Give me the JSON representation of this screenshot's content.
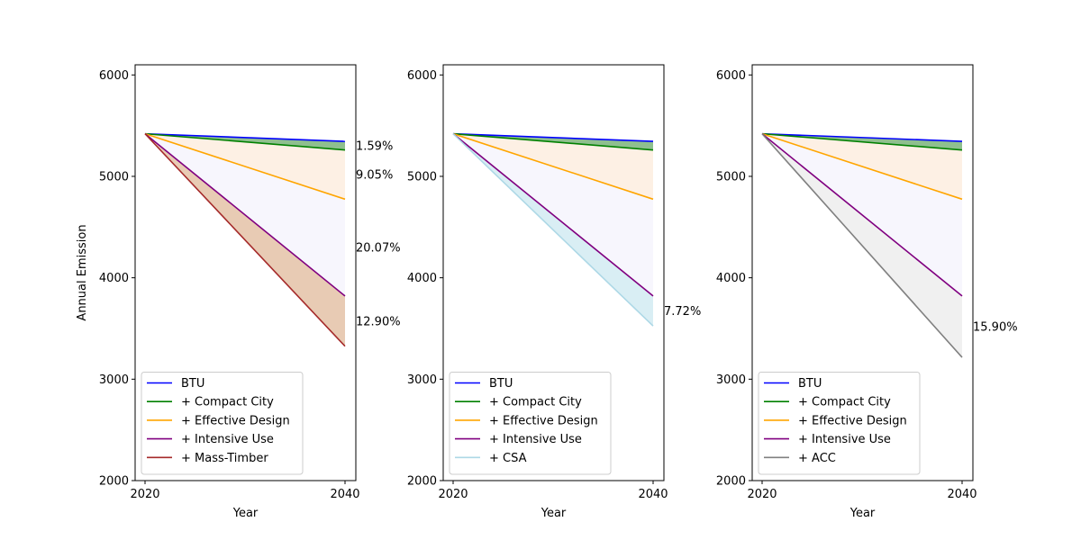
{
  "figure": {
    "shared_ylabel": "Annual Emission"
  },
  "chart_data": [
    {
      "type": "line",
      "xlabel": "Year",
      "ylabel": "Annual Emission",
      "x": [
        2020,
        2040
      ],
      "xticks": [
        "2020",
        "2040"
      ],
      "yticks": [
        "2000",
        "3000",
        "4000",
        "5000",
        "6000"
      ],
      "ylim": [
        2000,
        6100
      ],
      "series": [
        {
          "name": "BTU",
          "values": [
            5420,
            5345
          ],
          "color": "#0000ff"
        },
        {
          "name": "+ Compact City",
          "values": [
            5420,
            5260
          ],
          "color": "#008000"
        },
        {
          "name": "+ Effective Design",
          "values": [
            5420,
            4775
          ],
          "color": "#ffa500"
        },
        {
          "name": "+ Intensive Use",
          "values": [
            5420,
            3820
          ],
          "color": "#800080"
        },
        {
          "name": "+ Mass-Timber",
          "values": [
            5420,
            3325
          ],
          "color": "#a52a2a"
        }
      ],
      "bands": [
        {
          "upper": "BTU",
          "lower": "+ Compact City",
          "fill": "#8fbf8f",
          "label": "1.59%"
        },
        {
          "upper": "+ Compact City",
          "lower": "+ Effective Design",
          "fill": "#fdf0e4",
          "label": "9.05%"
        },
        {
          "upper": "+ Effective Design",
          "lower": "+ Intensive Use",
          "fill": "#f7f6fd",
          "label": "20.07%"
        },
        {
          "upper": "+ Intensive Use",
          "lower": "+ Mass-Timber",
          "fill": "#e8cbb4",
          "label": "12.90%"
        }
      ],
      "grid": false,
      "legend": "lower-left"
    },
    {
      "type": "line",
      "xlabel": "Year",
      "x": [
        2020,
        2040
      ],
      "xticks": [
        "2020",
        "2040"
      ],
      "yticks": [
        "2000",
        "3000",
        "4000",
        "5000",
        "6000"
      ],
      "ylim": [
        2000,
        6100
      ],
      "series": [
        {
          "name": "BTU",
          "values": [
            5420,
            5345
          ],
          "color": "#0000ff"
        },
        {
          "name": "+ Compact City",
          "values": [
            5420,
            5260
          ],
          "color": "#008000"
        },
        {
          "name": "+ Effective Design",
          "values": [
            5420,
            4775
          ],
          "color": "#ffa500"
        },
        {
          "name": "+ Intensive Use",
          "values": [
            5420,
            3820
          ],
          "color": "#800080"
        },
        {
          "name": "+ CSA",
          "values": [
            5420,
            3525
          ],
          "color": "#add8e6"
        }
      ],
      "bands": [
        {
          "upper": "BTU",
          "lower": "+ Compact City",
          "fill": "#8fbf8f",
          "label": ""
        },
        {
          "upper": "+ Compact City",
          "lower": "+ Effective Design",
          "fill": "#fdf0e4",
          "label": ""
        },
        {
          "upper": "+ Effective Design",
          "lower": "+ Intensive Use",
          "fill": "#f7f6fd",
          "label": ""
        },
        {
          "upper": "+ Intensive Use",
          "lower": "+ CSA",
          "fill": "#d9eef4",
          "label": "7.72%"
        }
      ],
      "grid": false,
      "legend": "lower-left"
    },
    {
      "type": "line",
      "xlabel": "Year",
      "x": [
        2020,
        2040
      ],
      "xticks": [
        "2020",
        "2040"
      ],
      "yticks": [
        "2000",
        "3000",
        "4000",
        "5000",
        "6000"
      ],
      "ylim": [
        2000,
        6100
      ],
      "series": [
        {
          "name": "BTU",
          "values": [
            5420,
            5345
          ],
          "color": "#0000ff"
        },
        {
          "name": "+ Compact City",
          "values": [
            5420,
            5260
          ],
          "color": "#008000"
        },
        {
          "name": "+ Effective Design",
          "values": [
            5420,
            4775
          ],
          "color": "#ffa500"
        },
        {
          "name": "+ Intensive Use",
          "values": [
            5420,
            3820
          ],
          "color": "#800080"
        },
        {
          "name": "+ ACC",
          "values": [
            5420,
            3215
          ],
          "color": "#808080"
        }
      ],
      "bands": [
        {
          "upper": "BTU",
          "lower": "+ Compact City",
          "fill": "#8fbf8f",
          "label": ""
        },
        {
          "upper": "+ Compact City",
          "lower": "+ Effective Design",
          "fill": "#fdf0e4",
          "label": ""
        },
        {
          "upper": "+ Effective Design",
          "lower": "+ Intensive Use",
          "fill": "#f7f6fd",
          "label": ""
        },
        {
          "upper": "+ Intensive Use",
          "lower": "+ ACC",
          "fill": "#f0f0f0",
          "label": "15.90%"
        }
      ],
      "grid": false,
      "legend": "lower-left"
    }
  ]
}
